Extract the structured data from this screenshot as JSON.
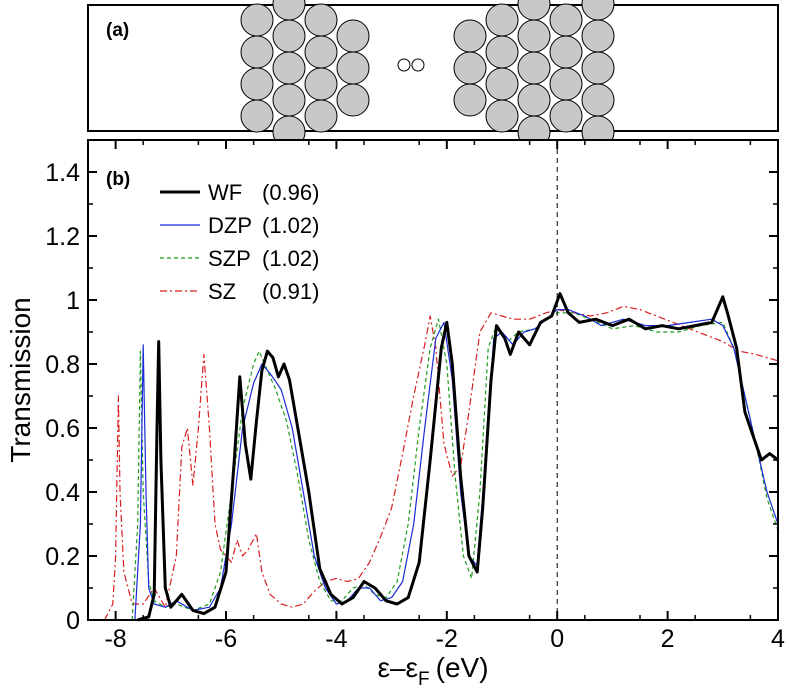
{
  "panel_a": {
    "label": "(a)",
    "left_electrode_columns": [
      4,
      5,
      4,
      3
    ],
    "right_electrode_columns": [
      3,
      4,
      5,
      4,
      5
    ],
    "chain_atoms": 2,
    "atom_fill": "#c8c8c8",
    "chain_fill": "#ffffff"
  },
  "chart_data": {
    "type": "line",
    "panel_label": "(b)",
    "xlabel": "ε–ε",
    "xlabel_sub": "F",
    "xlabel_unit": "(eV)",
    "ylabel": "Transmission",
    "xlim": [
      -8.5,
      4
    ],
    "ylim": [
      0,
      1.5
    ],
    "x_ticks": [
      -8,
      -6,
      -4,
      -2,
      0,
      2,
      4
    ],
    "x_tick_labels": [
      "-8",
      "-6",
      "-4",
      "-2",
      "0",
      "2",
      "4"
    ],
    "y_ticks": [
      0,
      0.2,
      0.4,
      0.6,
      0.8,
      1.0,
      1.2,
      1.4
    ],
    "y_tick_labels": [
      "0",
      "0.2",
      "0.4",
      "0.6",
      "0.8",
      "1",
      "1.2",
      "1.4"
    ],
    "fermi_line_x": 0,
    "legend_position": "top-left",
    "series": [
      {
        "name": "WF",
        "value_label": "(0.96)",
        "color": "#000000",
        "style": "solid-thick",
        "points": [
          [
            -7.6,
            0
          ],
          [
            -7.4,
            0.01
          ],
          [
            -7.3,
            0.08
          ],
          [
            -7.25,
            0.6
          ],
          [
            -7.22,
            0.87
          ],
          [
            -7.18,
            0.5
          ],
          [
            -7.1,
            0.1
          ],
          [
            -7.0,
            0.04
          ],
          [
            -6.8,
            0.08
          ],
          [
            -6.6,
            0.03
          ],
          [
            -6.4,
            0.02
          ],
          [
            -6.2,
            0.04
          ],
          [
            -6.0,
            0.15
          ],
          [
            -5.85,
            0.5
          ],
          [
            -5.75,
            0.76
          ],
          [
            -5.65,
            0.55
          ],
          [
            -5.55,
            0.44
          ],
          [
            -5.45,
            0.62
          ],
          [
            -5.35,
            0.78
          ],
          [
            -5.25,
            0.84
          ],
          [
            -5.15,
            0.82
          ],
          [
            -5.05,
            0.76
          ],
          [
            -4.95,
            0.8
          ],
          [
            -4.85,
            0.75
          ],
          [
            -4.7,
            0.6
          ],
          [
            -4.5,
            0.4
          ],
          [
            -4.3,
            0.16
          ],
          [
            -4.1,
            0.08
          ],
          [
            -3.9,
            0.05
          ],
          [
            -3.7,
            0.07
          ],
          [
            -3.5,
            0.12
          ],
          [
            -3.3,
            0.1
          ],
          [
            -3.1,
            0.06
          ],
          [
            -2.9,
            0.05
          ],
          [
            -2.7,
            0.07
          ],
          [
            -2.5,
            0.18
          ],
          [
            -2.3,
            0.5
          ],
          [
            -2.1,
            0.85
          ],
          [
            -2.0,
            0.93
          ],
          [
            -1.9,
            0.8
          ],
          [
            -1.75,
            0.45
          ],
          [
            -1.6,
            0.2
          ],
          [
            -1.45,
            0.15
          ],
          [
            -1.35,
            0.35
          ],
          [
            -1.2,
            0.75
          ],
          [
            -1.1,
            0.92
          ],
          [
            -0.95,
            0.88
          ],
          [
            -0.85,
            0.83
          ],
          [
            -0.7,
            0.9
          ],
          [
            -0.5,
            0.86
          ],
          [
            -0.3,
            0.93
          ],
          [
            -0.1,
            0.95
          ],
          [
            0.05,
            1.02
          ],
          [
            0.2,
            0.96
          ],
          [
            0.4,
            0.93
          ],
          [
            0.7,
            0.94
          ],
          [
            1.0,
            0.92
          ],
          [
            1.3,
            0.94
          ],
          [
            1.6,
            0.91
          ],
          [
            1.9,
            0.92
          ],
          [
            2.2,
            0.91
          ],
          [
            2.5,
            0.92
          ],
          [
            2.8,
            0.93
          ],
          [
            3.0,
            1.01
          ],
          [
            3.1,
            0.95
          ],
          [
            3.25,
            0.85
          ],
          [
            3.4,
            0.65
          ],
          [
            3.5,
            0.6
          ],
          [
            3.6,
            0.55
          ],
          [
            3.7,
            0.5
          ],
          [
            3.85,
            0.52
          ],
          [
            4.0,
            0.5
          ]
        ]
      },
      {
        "name": "DZP",
        "value_label": "(1.02)",
        "color": "#1a2cd8",
        "style": "solid-thin",
        "points": [
          [
            -7.65,
            0
          ],
          [
            -7.55,
            0.3
          ],
          [
            -7.5,
            0.86
          ],
          [
            -7.45,
            0.4
          ],
          [
            -7.4,
            0.1
          ],
          [
            -7.3,
            0.05
          ],
          [
            -7.1,
            0.04
          ],
          [
            -6.9,
            0.06
          ],
          [
            -6.6,
            0.03
          ],
          [
            -6.3,
            0.04
          ],
          [
            -6.1,
            0.1
          ],
          [
            -5.9,
            0.3
          ],
          [
            -5.7,
            0.6
          ],
          [
            -5.5,
            0.74
          ],
          [
            -5.35,
            0.8
          ],
          [
            -5.2,
            0.77
          ],
          [
            -5.0,
            0.72
          ],
          [
            -4.8,
            0.6
          ],
          [
            -4.6,
            0.4
          ],
          [
            -4.4,
            0.2
          ],
          [
            -4.2,
            0.1
          ],
          [
            -4.0,
            0.05
          ],
          [
            -3.8,
            0.06
          ],
          [
            -3.6,
            0.1
          ],
          [
            -3.4,
            0.1
          ],
          [
            -3.2,
            0.06
          ],
          [
            -3.0,
            0.07
          ],
          [
            -2.8,
            0.12
          ],
          [
            -2.6,
            0.3
          ],
          [
            -2.4,
            0.6
          ],
          [
            -2.2,
            0.88
          ],
          [
            -2.05,
            0.93
          ],
          [
            -1.9,
            0.75
          ],
          [
            -1.75,
            0.4
          ],
          [
            -1.6,
            0.2
          ],
          [
            -1.45,
            0.17
          ],
          [
            -1.3,
            0.5
          ],
          [
            -1.15,
            0.88
          ],
          [
            -1.0,
            0.9
          ],
          [
            -0.8,
            0.86
          ],
          [
            -0.6,
            0.9
          ],
          [
            -0.4,
            0.91
          ],
          [
            -0.2,
            0.94
          ],
          [
            0,
            0.97
          ],
          [
            0.2,
            0.97
          ],
          [
            0.5,
            0.95
          ],
          [
            0.8,
            0.92
          ],
          [
            1.2,
            0.94
          ],
          [
            1.6,
            0.92
          ],
          [
            2.0,
            0.92
          ],
          [
            2.4,
            0.93
          ],
          [
            2.8,
            0.94
          ],
          [
            3.0,
            0.92
          ],
          [
            3.2,
            0.85
          ],
          [
            3.4,
            0.7
          ],
          [
            3.6,
            0.55
          ],
          [
            3.8,
            0.4
          ],
          [
            4.0,
            0.3
          ]
        ]
      },
      {
        "name": "SZP",
        "value_label": "(1.02)",
        "color": "#1f9a1f",
        "style": "dashed",
        "points": [
          [
            -7.7,
            0
          ],
          [
            -7.6,
            0.3
          ],
          [
            -7.55,
            0.84
          ],
          [
            -7.5,
            0.4
          ],
          [
            -7.4,
            0.12
          ],
          [
            -7.3,
            0.06
          ],
          [
            -7.1,
            0.04
          ],
          [
            -6.9,
            0.05
          ],
          [
            -6.6,
            0.03
          ],
          [
            -6.3,
            0.05
          ],
          [
            -6.1,
            0.15
          ],
          [
            -5.9,
            0.4
          ],
          [
            -5.7,
            0.66
          ],
          [
            -5.5,
            0.8
          ],
          [
            -5.4,
            0.84
          ],
          [
            -5.3,
            0.8
          ],
          [
            -5.1,
            0.72
          ],
          [
            -4.9,
            0.62
          ],
          [
            -4.7,
            0.45
          ],
          [
            -4.5,
            0.25
          ],
          [
            -4.3,
            0.12
          ],
          [
            -4.1,
            0.06
          ],
          [
            -3.9,
            0.06
          ],
          [
            -3.7,
            0.1
          ],
          [
            -3.5,
            0.11
          ],
          [
            -3.3,
            0.08
          ],
          [
            -3.1,
            0.07
          ],
          [
            -2.9,
            0.12
          ],
          [
            -2.7,
            0.3
          ],
          [
            -2.5,
            0.6
          ],
          [
            -2.3,
            0.85
          ],
          [
            -2.15,
            0.94
          ],
          [
            -2.0,
            0.8
          ],
          [
            -1.85,
            0.45
          ],
          [
            -1.7,
            0.2
          ],
          [
            -1.55,
            0.13
          ],
          [
            -1.4,
            0.4
          ],
          [
            -1.25,
            0.85
          ],
          [
            -1.1,
            0.92
          ],
          [
            -0.9,
            0.87
          ],
          [
            -0.7,
            0.9
          ],
          [
            -0.4,
            0.91
          ],
          [
            -0.2,
            0.94
          ],
          [
            0,
            0.96
          ],
          [
            0.3,
            0.96
          ],
          [
            0.6,
            0.94
          ],
          [
            1.0,
            0.91
          ],
          [
            1.4,
            0.92
          ],
          [
            1.8,
            0.9
          ],
          [
            2.2,
            0.9
          ],
          [
            2.6,
            0.92
          ],
          [
            3.0,
            0.93
          ],
          [
            3.2,
            0.85
          ],
          [
            3.4,
            0.7
          ],
          [
            3.6,
            0.55
          ],
          [
            3.8,
            0.38
          ],
          [
            4.0,
            0.28
          ]
        ]
      },
      {
        "name": "SZ",
        "value_label": "(0.91)",
        "color": "#d81f1f",
        "style": "dash-dot",
        "points": [
          [
            -8.2,
            0
          ],
          [
            -8.05,
            0.05
          ],
          [
            -8.0,
            0.2
          ],
          [
            -7.95,
            0.7
          ],
          [
            -7.92,
            0.4
          ],
          [
            -7.85,
            0.15
          ],
          [
            -7.7,
            0.05
          ],
          [
            -7.5,
            0.05
          ],
          [
            -7.3,
            0.1
          ],
          [
            -7.1,
            0.04
          ],
          [
            -6.9,
            0.2
          ],
          [
            -6.8,
            0.54
          ],
          [
            -6.7,
            0.6
          ],
          [
            -6.6,
            0.42
          ],
          [
            -6.5,
            0.6
          ],
          [
            -6.4,
            0.83
          ],
          [
            -6.3,
            0.6
          ],
          [
            -6.2,
            0.3
          ],
          [
            -6.1,
            0.22
          ],
          [
            -5.9,
            0.18
          ],
          [
            -5.8,
            0.25
          ],
          [
            -5.7,
            0.2
          ],
          [
            -5.6,
            0.22
          ],
          [
            -5.45,
            0.27
          ],
          [
            -5.35,
            0.15
          ],
          [
            -5.2,
            0.08
          ],
          [
            -5.0,
            0.05
          ],
          [
            -4.8,
            0.04
          ],
          [
            -4.6,
            0.05
          ],
          [
            -4.4,
            0.09
          ],
          [
            -4.2,
            0.12
          ],
          [
            -4.0,
            0.13
          ],
          [
            -3.8,
            0.12
          ],
          [
            -3.6,
            0.13
          ],
          [
            -3.4,
            0.18
          ],
          [
            -3.2,
            0.26
          ],
          [
            -3.0,
            0.35
          ],
          [
            -2.8,
            0.52
          ],
          [
            -2.6,
            0.7
          ],
          [
            -2.4,
            0.86
          ],
          [
            -2.3,
            0.95
          ],
          [
            -2.2,
            0.85
          ],
          [
            -2.05,
            0.55
          ],
          [
            -1.9,
            0.45
          ],
          [
            -1.75,
            0.48
          ],
          [
            -1.6,
            0.65
          ],
          [
            -1.4,
            0.9
          ],
          [
            -1.2,
            0.96
          ],
          [
            -1.0,
            0.95
          ],
          [
            -0.8,
            0.94
          ],
          [
            -0.5,
            0.94
          ],
          [
            -0.2,
            0.96
          ],
          [
            0,
            0.97
          ],
          [
            0.3,
            0.96
          ],
          [
            0.6,
            0.95
          ],
          [
            0.9,
            0.96
          ],
          [
            1.2,
            0.98
          ],
          [
            1.5,
            0.97
          ],
          [
            1.8,
            0.95
          ],
          [
            2.1,
            0.93
          ],
          [
            2.4,
            0.91
          ],
          [
            2.7,
            0.89
          ],
          [
            3.0,
            0.87
          ],
          [
            3.3,
            0.84
          ],
          [
            3.6,
            0.83
          ],
          [
            4.0,
            0.81
          ]
        ]
      }
    ]
  }
}
